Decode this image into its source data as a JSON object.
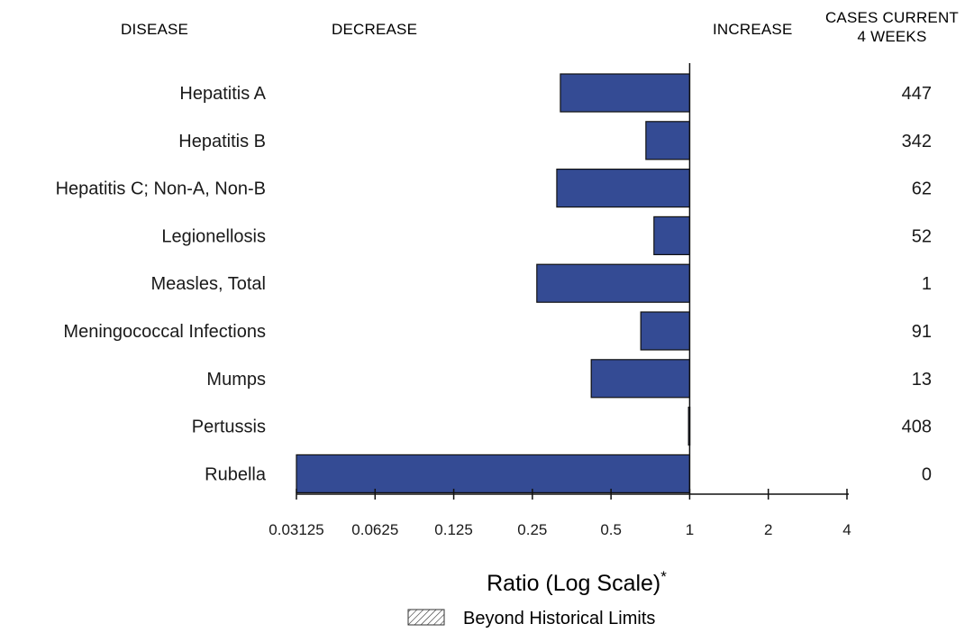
{
  "headers": {
    "disease": "DISEASE",
    "decrease": "DECREASE",
    "increase": "INCREASE",
    "cases_line1": "CASES CURRENT",
    "cases_line2": "4 WEEKS"
  },
  "axis": {
    "title": "Ratio (Log Scale)",
    "title_mark": "*"
  },
  "legend": {
    "label": "Beyond Historical Limits"
  },
  "colors": {
    "bar_fill": "#344b94",
    "bar_stroke": "#111111",
    "axis": "#111111",
    "text": "#1a1a1a"
  },
  "chart_data": {
    "type": "bar",
    "orientation": "horizontal",
    "scale": "log2",
    "baseline": 1,
    "xlim": [
      0.03125,
      4
    ],
    "ticks": [
      "0.03125",
      "0.0625",
      "0.125",
      "0.25",
      "0.5",
      "1",
      "2",
      "4"
    ],
    "tick_values": [
      0.03125,
      0.0625,
      0.125,
      0.25,
      0.5,
      1,
      2,
      4
    ],
    "categories": [
      "Hepatitis A",
      "Hepatitis B",
      "Hepatitis C; Non-A, Non-B",
      "Legionellosis",
      "Measles, Total",
      "Meningococcal Infections",
      "Mumps",
      "Pertussis",
      "Rubella"
    ],
    "values": [
      0.32,
      0.68,
      0.31,
      0.73,
      0.26,
      0.65,
      0.42,
      0.99,
      0.03125
    ],
    "cases_current_4_weeks": [
      "447",
      "342",
      "62",
      "52",
      "1",
      "91",
      "13",
      "408",
      "0"
    ]
  }
}
